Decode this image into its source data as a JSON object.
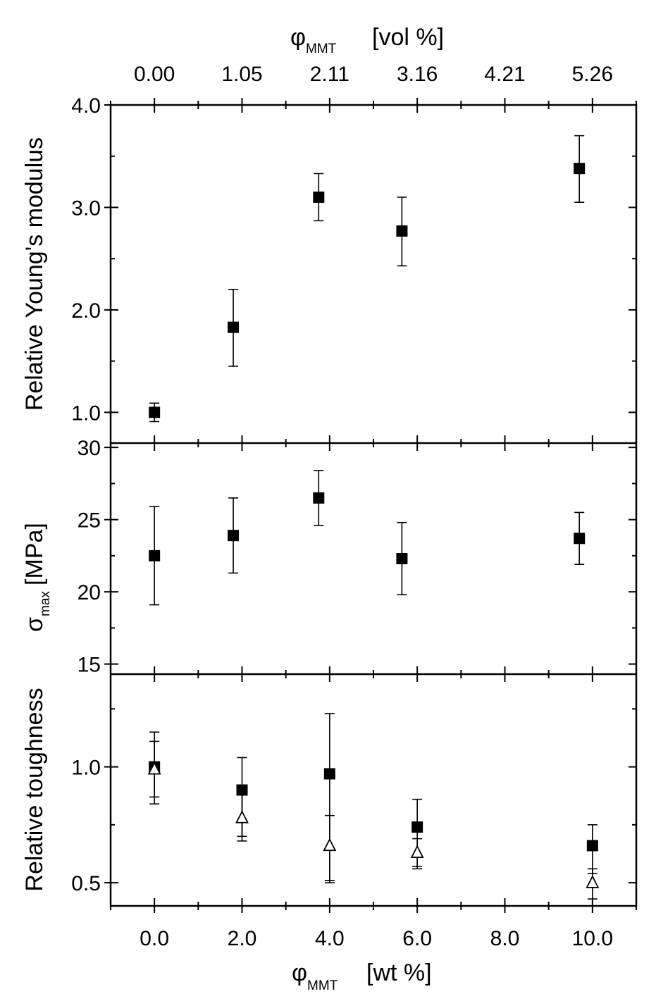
{
  "chart_data": [
    {
      "type": "scatter",
      "panel": "top",
      "ylabel": "Relative Young's modulus",
      "ylim": [
        0.7,
        4.0
      ],
      "yticks": [
        1.0,
        2.0,
        3.0,
        4.0
      ],
      "ytick_labels": [
        "1.0",
        "2.0",
        "3.0",
        "4.0"
      ],
      "top_axis": {
        "label_main": "φ",
        "label_sub": "MMT",
        "label_unit": "[vol %]",
        "tick_labels": [
          "0.00",
          "1.05",
          "2.11",
          "3.16",
          "4.21",
          "5.26"
        ],
        "tick_wt": [
          0.0,
          2.0,
          4.0,
          6.0,
          8.0,
          10.0
        ]
      },
      "series": [
        {
          "marker": "filled-square",
          "x": [
            0.0,
            1.8,
            3.75,
            5.65,
            9.7
          ],
          "y": [
            1.0,
            1.83,
            3.1,
            2.77,
            3.38
          ],
          "err_low": [
            0.09,
            0.38,
            0.23,
            0.34,
            0.33
          ],
          "err_high": [
            0.09,
            0.37,
            0.23,
            0.33,
            0.32
          ]
        }
      ]
    },
    {
      "type": "scatter",
      "panel": "middle",
      "ylabel_main": "σ",
      "ylabel_sub": "max",
      "ylabel_unit": "[MPa]",
      "ylim": [
        14.3,
        30.3
      ],
      "yticks": [
        15,
        20,
        25,
        30
      ],
      "ytick_labels": [
        "15",
        "20",
        "25",
        "30"
      ],
      "series": [
        {
          "marker": "filled-square",
          "x": [
            0.0,
            1.8,
            3.75,
            5.65,
            9.7
          ],
          "y": [
            22.5,
            23.9,
            26.5,
            22.3,
            23.7
          ],
          "err_low": [
            3.4,
            2.6,
            1.9,
            2.5,
            1.8
          ],
          "err_high": [
            3.4,
            2.6,
            1.9,
            2.5,
            1.8
          ]
        }
      ]
    },
    {
      "type": "scatter",
      "panel": "bottom",
      "ylabel": "Relative toughness",
      "ylim": [
        0.4,
        1.4
      ],
      "yticks": [
        0.5,
        1.0
      ],
      "ytick_labels": [
        "0.5",
        "1.0"
      ],
      "xlabel_main": "φ",
      "xlabel_sub": "MMT",
      "xlabel_unit": "[wt %]",
      "xlim": [
        -1.0,
        11.0
      ],
      "xticks": [
        0.0,
        2.0,
        4.0,
        6.0,
        8.0,
        10.0
      ],
      "xtick_labels": [
        "0.0",
        "2.0",
        "4.0",
        "6.0",
        "8.0",
        "10.0"
      ],
      "series": [
        {
          "marker": "filled-square",
          "x": [
            0.0,
            2.0,
            4.0,
            6.0,
            10.0
          ],
          "y": [
            1.0,
            0.9,
            0.97,
            0.74,
            0.66
          ],
          "err_low": [
            0.13,
            0.2,
            0.46,
            0.17,
            0.12
          ],
          "err_high": [
            0.15,
            0.14,
            0.26,
            0.12,
            0.09
          ]
        },
        {
          "marker": "open-triangle",
          "x": [
            0.0,
            2.0,
            4.0,
            6.0,
            10.0
          ],
          "y": [
            0.99,
            0.78,
            0.66,
            0.63,
            0.5
          ],
          "err_low": [
            0.15,
            0.1,
            0.16,
            0.07,
            0.07
          ],
          "err_high": [
            0.12,
            0.1,
            0.13,
            0.06,
            0.06
          ]
        }
      ]
    }
  ]
}
